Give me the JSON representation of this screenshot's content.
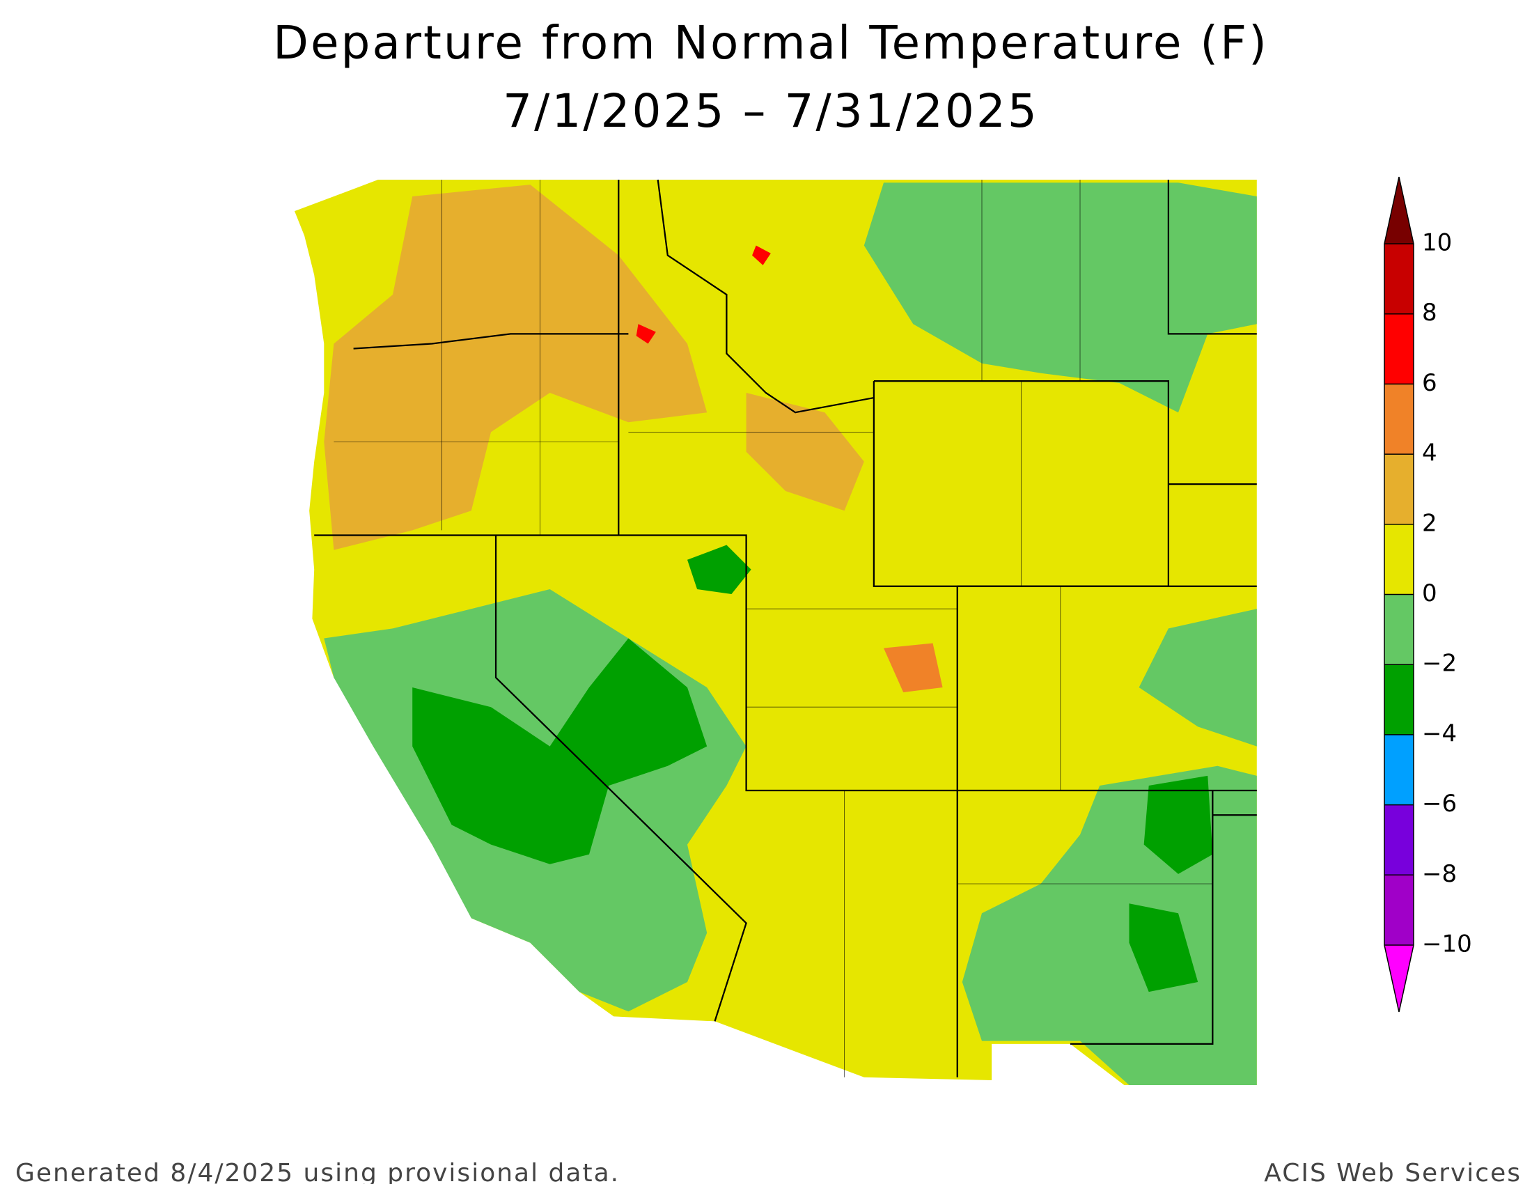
{
  "title": "Departure from Normal Temperature (F)",
  "subtitle": "7/1/2025 – 7/31/2025",
  "legend": {
    "range": [
      -10,
      10
    ],
    "ticks": [
      {
        "value": -10,
        "label": "−10"
      },
      {
        "value": -8,
        "label": "−8"
      },
      {
        "value": -6,
        "label": "−6"
      },
      {
        "value": -4,
        "label": "−4"
      },
      {
        "value": -2,
        "label": "−2"
      },
      0,
      2,
      4,
      6,
      8,
      10
    ],
    "colors": [
      "#ff00ff",
      "#a000c8",
      "#7800dc",
      "#00a0ff",
      "#00a000",
      "#64c864",
      "#e6e600",
      "#e6af2d",
      "#f08228",
      "#ff0000",
      "#c80000",
      "#780000"
    ]
  },
  "footer": {
    "left": "Generated 8/4/2025 using provisional data.",
    "right": "ACIS Web Services"
  }
}
